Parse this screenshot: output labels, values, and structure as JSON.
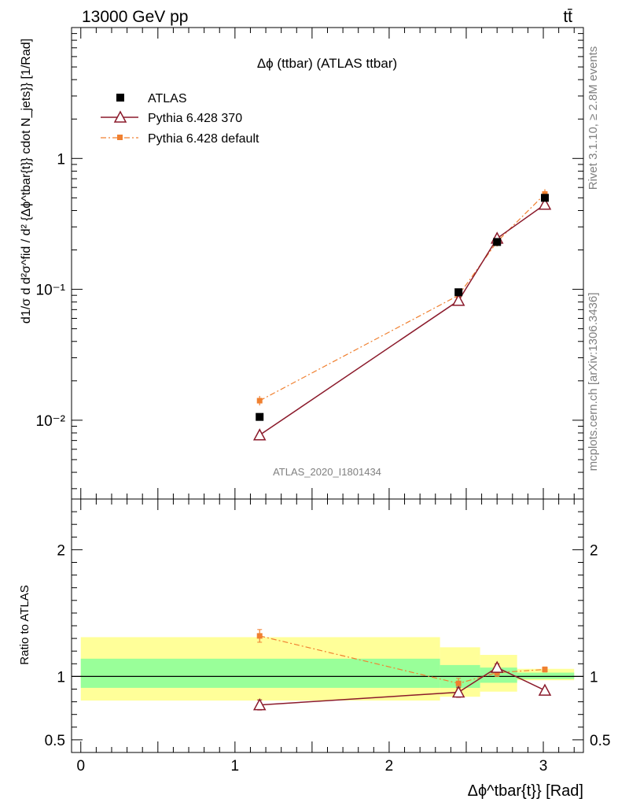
{
  "header": {
    "energy_label": "13000 GeV pp",
    "process_label": "tt̄"
  },
  "side_labels": {
    "rivet": "Rivet 3.1.10, ≥ 2.8M events",
    "source": "mcplots.cern.ch [arXiv:1306.3436]"
  },
  "chart_data": [
    {
      "type": "line",
      "panel": "main",
      "title": "Δϕ (ttbar) (ATLAS ttbar)",
      "watermark": "ATLAS_2020_I1801434",
      "ylabel": "d1/σ d d²σ^fid / d² {Δϕ^tbar{t}} cdot N_jets}} [1/Rad]",
      "yscale": "log",
      "ylim": [
        0.0025,
        10
      ],
      "y_tick_labels": [
        "10⁻²",
        "10⁻¹",
        "1"
      ],
      "xlim": [
        -0.06,
        3.26
      ],
      "legend_position": "top-left",
      "series": [
        {
          "name": "ATLAS",
          "marker": "square",
          "color": "#000000",
          "x": [
            1.16,
            2.45,
            2.7,
            3.01
          ],
          "y": [
            0.0106,
            0.095,
            0.23,
            0.5
          ]
        },
        {
          "name": "Pythia 6.428 370",
          "marker": "open-triangle",
          "color": "#8b1a2b",
          "line": "solid",
          "x": [
            1.16,
            2.45,
            2.7,
            3.01
          ],
          "y": [
            0.0077,
            0.082,
            0.245,
            0.445
          ]
        },
        {
          "name": "Pythia 6.428 default",
          "marker": "small-square",
          "color": "#f08030",
          "line": "dash-dot",
          "x": [
            1.16,
            2.45,
            2.7,
            3.01
          ],
          "y": [
            0.0141,
            0.09,
            0.231,
            0.535
          ]
        }
      ]
    },
    {
      "type": "line",
      "panel": "ratio",
      "ylabel": "Ratio to ATLAS",
      "xlabel": "Δϕ^tbar{t}} [Rad]",
      "ylim": [
        0.4,
        2.4
      ],
      "xlim": [
        -0.06,
        3.26
      ],
      "x_tick_labels": [
        "0",
        "1",
        "2",
        "3"
      ],
      "y_tick_labels": [
        "0.5",
        "1",
        "2"
      ],
      "uncertainty_bands": [
        {
          "xlo": 0.0,
          "xhi": 2.33,
          "inner": [
            0.91,
            1.14
          ],
          "outer": [
            0.81,
            1.31
          ]
        },
        {
          "xlo": 2.33,
          "xhi": 2.59,
          "inner": [
            0.91,
            1.09
          ],
          "outer": [
            0.84,
            1.23
          ]
        },
        {
          "xlo": 2.59,
          "xhi": 2.83,
          "inner": [
            0.95,
            1.07
          ],
          "outer": [
            0.88,
            1.17
          ]
        },
        {
          "xlo": 2.83,
          "xhi": 3.2,
          "inner": [
            0.98,
            1.03
          ],
          "outer": [
            0.97,
            1.06
          ]
        }
      ],
      "series": [
        {
          "name": "Pythia 6.428 370",
          "color": "#8b1a2b",
          "line": "solid",
          "x": [
            1.16,
            2.45,
            2.7,
            3.01
          ],
          "y": [
            0.775,
            0.875,
            1.07,
            0.89
          ],
          "yerr": [
            0.04,
            0.04,
            0.03,
            0.0
          ]
        },
        {
          "name": "Pythia 6.428 default",
          "color": "#f08030",
          "line": "dash-dot",
          "x": [
            1.16,
            2.45,
            2.7,
            3.01
          ],
          "y": [
            1.32,
            0.945,
            1.03,
            1.055
          ],
          "yerr": [
            0.05,
            0.04,
            0.03,
            0.02
          ]
        }
      ]
    }
  ]
}
